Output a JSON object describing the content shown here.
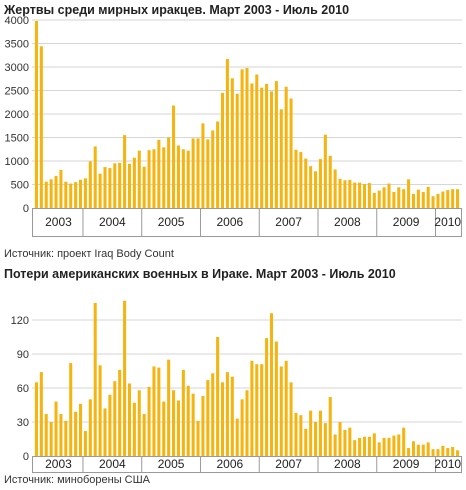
{
  "colors": {
    "bar": "#f5b40f",
    "grid": "#d6d6d6",
    "axis": "#9a9a9a"
  },
  "chart_data": [
    {
      "type": "bar",
      "title": "Жертвы среди мирных иракцев. Март 2003 - Июль 2010",
      "source": "Источник: проект  Iraq Body Count",
      "xlabel": "",
      "ylabel": "",
      "ylim": [
        0,
        4000
      ],
      "yticks": [
        "0",
        "500",
        "1000",
        "1500",
        "2000",
        "2500",
        "3000",
        "3500",
        "4000"
      ],
      "ytick_values": [
        0,
        500,
        1000,
        1500,
        2000,
        2500,
        3000,
        3500,
        4000
      ],
      "year_labels": [
        "2003",
        "2004",
        "2005",
        "2006",
        "2007",
        "2008",
        "2009",
        "2010"
      ],
      "grid": true,
      "x_start": "2003-03",
      "values": [
        3980,
        3440,
        560,
        610,
        680,
        810,
        560,
        520,
        550,
        600,
        630,
        990,
        1310,
        730,
        870,
        850,
        950,
        960,
        1550,
        940,
        1070,
        1220,
        880,
        1230,
        1250,
        1450,
        1290,
        1500,
        2180,
        1330,
        1250,
        1220,
        1480,
        1480,
        1800,
        1460,
        1650,
        1840,
        2450,
        3170,
        2760,
        2430,
        2950,
        2980,
        2650,
        2840,
        2560,
        2640,
        2480,
        2700,
        2100,
        2580,
        2330,
        1240,
        1190,
        1050,
        890,
        780,
        1040,
        1560,
        1110,
        820,
        620,
        590,
        600,
        540,
        540,
        510,
        530,
        320,
        370,
        440,
        520,
        340,
        440,
        400,
        610,
        300,
        390,
        340,
        450,
        250,
        300,
        350,
        380,
        400,
        400
      ]
    },
    {
      "type": "bar",
      "title": "Потери американских военных в Ираке. Март 2003 - Июль 2010",
      "source": "Источник: миноборены США",
      "xlabel": "",
      "ylabel": "",
      "ylim": [
        0,
        150
      ],
      "yticks": [
        "0",
        "30",
        "60",
        "90",
        "120"
      ],
      "ytick_values": [
        0,
        30,
        60,
        90,
        120
      ],
      "year_labels": [
        "2003",
        "2004",
        "2005",
        "2006",
        "2007",
        "2008",
        "2009",
        "2010"
      ],
      "grid": true,
      "x_start": "2003-03",
      "values": [
        65,
        74,
        37,
        30,
        48,
        37,
        31,
        82,
        39,
        46,
        22,
        50,
        135,
        80,
        42,
        54,
        66,
        76,
        137,
        64,
        47,
        58,
        37,
        61,
        79,
        78,
        48,
        85,
        58,
        49,
        76,
        62,
        55,
        31,
        53,
        67,
        73,
        105,
        65,
        74,
        70,
        33,
        50,
        58,
        84,
        81,
        81,
        104,
        126,
        101,
        79,
        84,
        65,
        38,
        36,
        24,
        40,
        30,
        40,
        29,
        52,
        19,
        30,
        23,
        25,
        14,
        16,
        17,
        17,
        20,
        12,
        16,
        16,
        18,
        19,
        25,
        7,
        13,
        10,
        10,
        12,
        6,
        6,
        9,
        7,
        8,
        5
      ]
    }
  ]
}
